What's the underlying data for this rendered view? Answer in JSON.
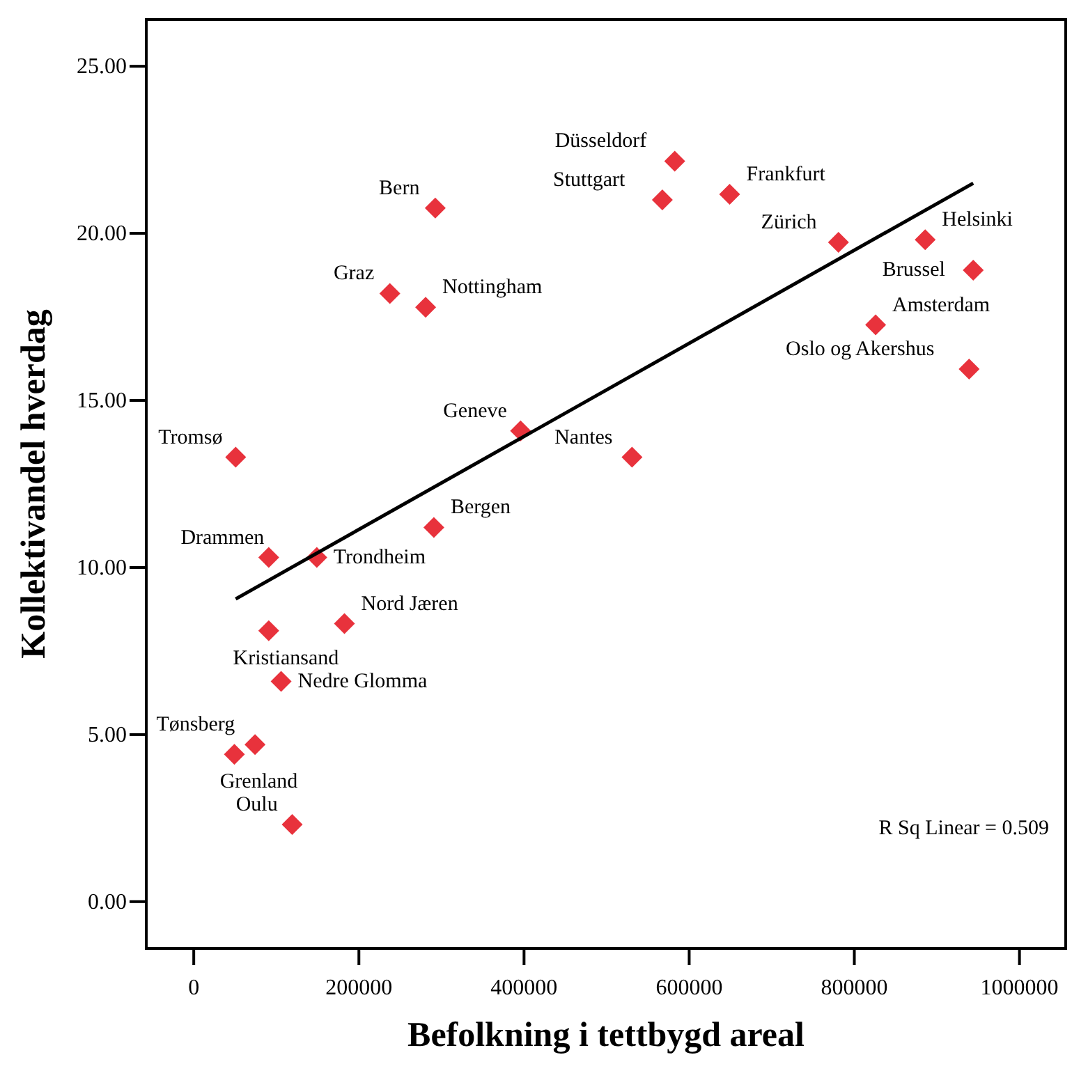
{
  "chart_data": {
    "type": "scatter",
    "xlabel": "Befolkning i tettbygd areal",
    "ylabel": "Kollektivandel hverdag",
    "xlim": [
      -57500,
      1056000
    ],
    "ylim": [
      -1.4,
      26.4
    ],
    "xticks": [
      0,
      200000,
      400000,
      600000,
      800000,
      1000000
    ],
    "yticks": [
      {
        "value": 0,
        "label": "0.00"
      },
      {
        "value": 5,
        "label": "5.00"
      },
      {
        "value": 10,
        "label": "10.00"
      },
      {
        "value": 15,
        "label": "15.00"
      },
      {
        "value": 20,
        "label": "20.00"
      },
      {
        "value": 25,
        "label": "25.00"
      }
    ],
    "grid": false,
    "marker": "diamond",
    "series": [
      {
        "color": "#e8323c",
        "x": [
          582500,
          567500,
          649000,
          292500,
          780800,
          885800,
          944000,
          237500,
          280800,
          825800,
          939000,
          395800,
          50800,
          530800,
          290800,
          90800,
          149000,
          182500,
          90800,
          105800,
          74200,
          49200,
          119200
        ],
        "values": [
          22.16,
          21.0,
          21.17,
          20.76,
          19.73,
          19.81,
          18.9,
          18.2,
          17.79,
          17.26,
          15.94,
          14.09,
          13.3,
          13.3,
          11.2,
          10.3,
          10.3,
          8.32,
          8.11,
          6.59,
          4.7,
          4.41,
          2.31
        ]
      },
      {
        "type": "line",
        "color": "#000000",
        "marker": "none",
        "line_style": "solid",
        "x": [
          50800,
          944000
        ],
        "values": [
          9.06,
          21.5
        ]
      }
    ],
    "annotations": [
      {
        "text": "Düsseldorf",
        "x": 582500,
        "y": 22.16
      },
      {
        "text": "Stuttgart",
        "x": 567500,
        "y": 21.0
      },
      {
        "text": "Frankfurt",
        "x": 649000,
        "y": 21.17
      },
      {
        "text": "Bern",
        "x": 292500,
        "y": 20.76
      },
      {
        "text": "Zürich",
        "x": 780800,
        "y": 19.73
      },
      {
        "text": "Helsinki",
        "x": 885800,
        "y": 19.81
      },
      {
        "text": "Brussel",
        "x": 944000,
        "y": 18.9
      },
      {
        "text": "Graz",
        "x": 237500,
        "y": 18.2
      },
      {
        "text": "Nottingham",
        "x": 280800,
        "y": 17.79
      },
      {
        "text": "Amsterdam",
        "x": 825800,
        "y": 17.26
      },
      {
        "text": "Oslo og Akershus",
        "x": 939000,
        "y": 15.94
      },
      {
        "text": "Geneve",
        "x": 395800,
        "y": 14.09
      },
      {
        "text": "Tromsø",
        "x": 50800,
        "y": 13.3
      },
      {
        "text": "Nantes",
        "x": 530800,
        "y": 13.3
      },
      {
        "text": "Bergen",
        "x": 290800,
        "y": 11.2
      },
      {
        "text": "Drammen",
        "x": 90800,
        "y": 10.3
      },
      {
        "text": "Trondheim",
        "x": 149000,
        "y": 10.3
      },
      {
        "text": "Nord Jæren",
        "x": 182500,
        "y": 8.32
      },
      {
        "text": "Kristiansand",
        "x": 90800,
        "y": 8.11
      },
      {
        "text": "Nedre Glomma",
        "x": 105800,
        "y": 6.59
      },
      {
        "text": "Tønsberg",
        "x": 74200,
        "y": 4.7
      },
      {
        "text": "Grenland",
        "x": 49200,
        "y": 4.41
      },
      {
        "text": "Oulu",
        "x": 119200,
        "y": 2.31
      },
      "R Sq Linear = 0.509"
    ]
  }
}
